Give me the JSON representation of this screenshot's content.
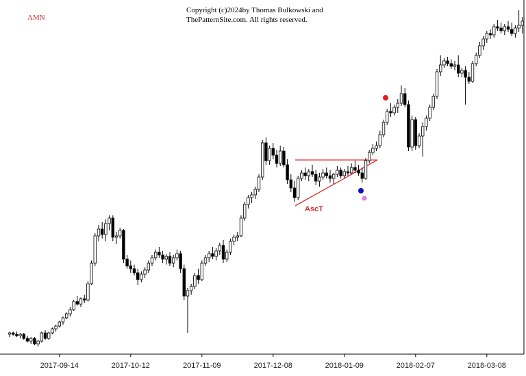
{
  "chart_data": {
    "type": "candlestick",
    "title": "AMN",
    "copyright": [
      "Copyright (c)2024by Thomas Bulkowski and",
      "ThePatternSite.com. All rights reserved."
    ],
    "annotation": "AscT",
    "ylim": [
      34.5,
      60
    ],
    "categories": [
      null,
      null,
      null,
      null,
      null,
      null,
      null,
      null,
      null,
      null,
      null,
      null,
      null,
      null,
      "2017-09-14",
      null,
      null,
      null,
      null,
      null,
      null,
      null,
      null,
      null,
      null,
      null,
      null,
      null,
      null,
      null,
      null,
      null,
      null,
      null,
      "2017-10-12",
      null,
      null,
      null,
      null,
      null,
      null,
      null,
      null,
      null,
      null,
      null,
      null,
      null,
      null,
      null,
      null,
      null,
      null,
      null,
      "2017-11-09",
      null,
      null,
      null,
      null,
      null,
      null,
      null,
      null,
      null,
      null,
      null,
      null,
      null,
      null,
      null,
      null,
      null,
      null,
      null,
      "2017-12-08",
      null,
      null,
      null,
      null,
      null,
      null,
      null,
      null,
      null,
      null,
      null,
      null,
      null,
      null,
      null,
      null,
      null,
      null,
      null,
      "2018-01-09",
      null,
      null,
      null,
      null,
      null,
      null,
      null,
      null,
      null,
      null,
      null,
      null,
      null,
      null,
      null,
      null,
      null,
      null,
      null,
      "2018-02-07",
      null,
      null,
      null,
      null,
      null,
      null,
      null,
      null,
      null,
      null,
      null,
      null,
      null,
      null,
      null,
      null,
      null,
      null,
      null,
      "2018-03-08",
      null,
      null,
      null,
      null,
      null,
      null,
      null,
      null,
      null,
      null
    ],
    "values": [
      [
        35.8,
        36.0,
        35.6,
        35.9
      ],
      [
        35.9,
        36.0,
        35.7,
        35.8
      ],
      [
        35.8,
        36.0,
        35.6,
        35.7
      ],
      [
        35.7,
        35.9,
        35.5,
        35.8
      ],
      [
        35.8,
        35.9,
        35.4,
        35.5
      ],
      [
        35.5,
        35.7,
        35.2,
        35.3
      ],
      [
        35.3,
        35.6,
        35.1,
        35.5
      ],
      [
        35.5,
        35.6,
        35.0,
        35.1
      ],
      [
        35.1,
        35.4,
        34.9,
        35.3
      ],
      [
        35.3,
        36.0,
        35.2,
        35.9
      ],
      [
        35.9,
        36.1,
        35.4,
        35.5
      ],
      [
        35.5,
        36.0,
        35.4,
        35.9
      ],
      [
        35.9,
        36.3,
        35.8,
        36.2
      ],
      [
        36.2,
        36.5,
        36.0,
        36.4
      ],
      [
        36.4,
        36.8,
        36.3,
        36.7
      ],
      [
        36.7,
        37.1,
        36.5,
        37.0
      ],
      [
        37.0,
        37.4,
        36.9,
        37.3
      ],
      [
        37.3,
        37.8,
        37.1,
        37.6
      ],
      [
        37.6,
        38.3,
        37.5,
        38.2
      ],
      [
        38.2,
        38.6,
        37.9,
        38.0
      ],
      [
        38.0,
        38.5,
        37.8,
        38.4
      ],
      [
        38.4,
        38.7,
        38.1,
        38.3
      ],
      [
        38.3,
        39.7,
        38.2,
        39.5
      ],
      [
        39.5,
        41.2,
        39.4,
        41.0
      ],
      [
        41.0,
        43.2,
        40.8,
        43.0
      ],
      [
        43.0,
        43.8,
        42.6,
        43.5
      ],
      [
        43.5,
        44.0,
        42.8,
        43.1
      ],
      [
        43.1,
        44.2,
        42.6,
        43.9
      ],
      [
        43.9,
        44.5,
        43.4,
        44.3
      ],
      [
        44.3,
        44.5,
        42.6,
        42.9
      ],
      [
        42.9,
        43.3,
        42.4,
        43.0
      ],
      [
        43.0,
        43.6,
        42.8,
        43.4
      ],
      [
        43.4,
        43.5,
        41.0,
        41.3
      ],
      [
        41.3,
        41.6,
        40.6,
        40.8
      ],
      [
        40.8,
        41.2,
        40.3,
        40.6
      ],
      [
        40.6,
        40.9,
        40.1,
        40.3
      ],
      [
        40.3,
        40.6,
        39.4,
        39.8
      ],
      [
        39.8,
        40.4,
        39.6,
        40.2
      ],
      [
        40.2,
        40.7,
        39.9,
        40.5
      ],
      [
        40.5,
        41.2,
        40.3,
        41.0
      ],
      [
        41.0,
        41.6,
        40.8,
        41.4
      ],
      [
        41.4,
        42.0,
        41.2,
        41.8
      ],
      [
        41.8,
        42.2,
        41.4,
        41.6
      ],
      [
        41.6,
        41.9,
        41.0,
        41.3
      ],
      [
        41.3,
        41.7,
        40.9,
        41.5
      ],
      [
        41.5,
        41.8,
        40.8,
        41.0
      ],
      [
        41.0,
        41.6,
        40.7,
        41.4
      ],
      [
        41.4,
        42.0,
        41.2,
        41.7
      ],
      [
        41.7,
        41.9,
        40.3,
        40.6
      ],
      [
        40.6,
        40.9,
        38.3,
        38.6
      ],
      [
        38.6,
        39.2,
        35.9,
        39.0
      ],
      [
        39.0,
        39.5,
        38.7,
        39.3
      ],
      [
        39.3,
        40.3,
        39.1,
        40.1
      ],
      [
        40.1,
        40.6,
        39.5,
        39.8
      ],
      [
        39.8,
        41.2,
        39.7,
        41.0
      ],
      [
        41.0,
        41.6,
        40.8,
        41.4
      ],
      [
        41.4,
        41.9,
        41.1,
        41.7
      ],
      [
        41.7,
        42.2,
        41.3,
        41.5
      ],
      [
        41.5,
        42.1,
        41.2,
        41.9
      ],
      [
        41.9,
        42.5,
        41.6,
        42.3
      ],
      [
        42.3,
        42.7,
        41.0,
        41.3
      ],
      [
        41.3,
        42.0,
        41.1,
        41.8
      ],
      [
        41.8,
        42.8,
        41.6,
        42.6
      ],
      [
        42.6,
        43.1,
        42.3,
        42.9
      ],
      [
        42.9,
        43.3,
        42.6,
        43.0
      ],
      [
        43.0,
        44.5,
        42.9,
        44.3
      ],
      [
        44.3,
        45.5,
        44.1,
        45.3
      ],
      [
        45.3,
        46.0,
        45.0,
        45.8
      ],
      [
        45.8,
        46.2,
        45.4,
        46.0
      ],
      [
        46.0,
        46.6,
        45.7,
        46.4
      ],
      [
        46.4,
        47.5,
        46.2,
        47.3
      ],
      [
        47.3,
        50.0,
        47.1,
        49.8
      ],
      [
        49.8,
        50.2,
        48.2,
        48.5
      ],
      [
        48.5,
        49.6,
        48.2,
        49.4
      ],
      [
        49.4,
        49.8,
        48.6,
        48.9
      ],
      [
        48.9,
        49.3,
        48.0,
        48.3
      ],
      [
        48.3,
        49.6,
        48.1,
        49.2
      ],
      [
        49.2,
        49.5,
        48.0,
        48.2
      ],
      [
        48.2,
        48.6,
        46.8,
        47.1
      ],
      [
        47.1,
        47.5,
        46.2,
        46.5
      ],
      [
        46.5,
        47.0,
        45.5,
        45.8
      ],
      [
        45.8,
        47.4,
        45.6,
        47.2
      ],
      [
        47.2,
        47.8,
        47.0,
        47.6
      ],
      [
        47.6,
        48.0,
        47.1,
        47.4
      ],
      [
        47.4,
        47.9,
        47.0,
        47.7
      ],
      [
        47.7,
        48.2,
        47.3,
        47.5
      ],
      [
        47.5,
        47.8,
        46.7,
        47.0
      ],
      [
        47.0,
        47.6,
        46.6,
        47.3
      ],
      [
        47.3,
        47.9,
        47.1,
        47.6
      ],
      [
        47.6,
        48.0,
        47.2,
        47.4
      ],
      [
        47.4,
        47.8,
        46.9,
        47.2
      ],
      [
        47.2,
        47.6,
        46.8,
        47.5
      ],
      [
        47.5,
        48.1,
        47.3,
        47.8
      ],
      [
        47.8,
        48.0,
        47.2,
        47.4
      ],
      [
        47.4,
        47.9,
        47.2,
        47.7
      ],
      [
        47.7,
        48.1,
        47.4,
        47.6
      ],
      [
        47.6,
        48.3,
        47.5,
        48.0
      ],
      [
        48.0,
        48.5,
        47.6,
        47.8
      ],
      [
        47.8,
        48.2,
        47.4,
        47.6
      ],
      [
        47.6,
        48.0,
        46.9,
        47.2
      ],
      [
        47.2,
        48.7,
        47.1,
        48.5
      ],
      [
        48.5,
        49.3,
        48.3,
        49.1
      ],
      [
        49.1,
        49.7,
        48.9,
        49.4
      ],
      [
        49.4,
        49.9,
        49.2,
        49.6
      ],
      [
        49.6,
        50.7,
        49.4,
        50.4
      ],
      [
        50.4,
        51.5,
        50.2,
        51.3
      ],
      [
        51.3,
        52.3,
        51.1,
        52.1
      ],
      [
        52.1,
        52.7,
        51.7,
        52.0
      ],
      [
        52.0,
        52.6,
        51.8,
        52.4
      ],
      [
        52.4,
        53.0,
        52.0,
        52.7
      ],
      [
        52.7,
        54.0,
        52.5,
        53.4
      ],
      [
        53.4,
        53.8,
        52.4,
        52.6
      ],
      [
        52.6,
        52.9,
        49.2,
        49.5
      ],
      [
        49.5,
        51.8,
        49.2,
        51.5
      ],
      [
        51.5,
        51.7,
        49.3,
        49.6
      ],
      [
        49.6,
        50.5,
        49.4,
        50.3
      ],
      [
        50.3,
        51.3,
        48.8,
        51.0
      ],
      [
        51.0,
        51.8,
        50.7,
        51.6
      ],
      [
        51.6,
        52.6,
        51.4,
        52.4
      ],
      [
        52.4,
        53.4,
        52.2,
        53.2
      ],
      [
        53.2,
        55.2,
        53.0,
        55.0
      ],
      [
        55.0,
        56.2,
        54.7,
        55.5
      ],
      [
        55.5,
        56.0,
        55.3,
        55.8
      ],
      [
        55.8,
        56.1,
        55.4,
        55.6
      ],
      [
        55.6,
        55.9,
        55.2,
        55.4
      ],
      [
        55.4,
        55.8,
        55.1,
        55.5
      ],
      [
        55.5,
        56.2,
        54.6,
        54.9
      ],
      [
        54.9,
        55.3,
        54.6,
        55.1
      ],
      [
        55.1,
        55.4,
        52.6,
        54.6
      ],
      [
        54.6,
        55.0,
        54.1,
        54.3
      ],
      [
        54.3,
        55.8,
        54.2,
        55.6
      ],
      [
        55.6,
        56.4,
        55.4,
        56.2
      ],
      [
        56.2,
        57.2,
        56.0,
        56.9
      ],
      [
        56.9,
        57.6,
        56.6,
        57.4
      ],
      [
        57.4,
        58.0,
        57.1,
        57.8
      ],
      [
        57.8,
        58.1,
        57.4,
        57.7
      ],
      [
        57.7,
        58.5,
        57.5,
        58.3
      ],
      [
        58.3,
        58.8,
        58.0,
        58.2
      ],
      [
        58.2,
        58.6,
        57.8,
        58.0
      ],
      [
        58.0,
        58.5,
        57.7,
        58.3
      ],
      [
        58.3,
        58.7,
        57.9,
        58.1
      ],
      [
        58.1,
        58.6,
        57.6,
        57.8
      ],
      [
        57.8,
        58.4,
        57.5,
        58.2
      ],
      [
        58.2,
        59.5,
        57.9,
        58.4
      ],
      [
        58.4,
        59.0,
        57.8,
        58.7
      ]
    ]
  }
}
